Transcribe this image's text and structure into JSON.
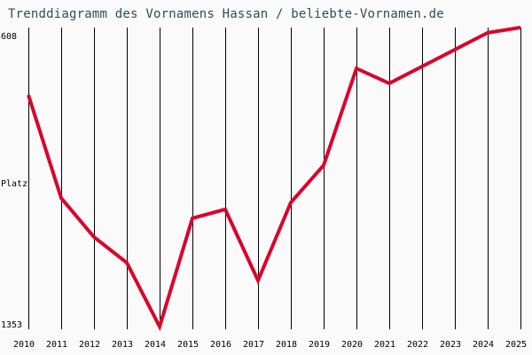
{
  "title": "Trenddiagramm des Vornamens Hassan / beliebte-Vornamen.de",
  "y_axis": {
    "top_label": "608",
    "mid_label": "Platz",
    "bottom_label": "1353"
  },
  "colors": {
    "line": "#d9042b",
    "title": "#2f4f4f",
    "grid": "#000000",
    "background": "#fafafa"
  },
  "chart_data": {
    "type": "line",
    "title": "Trenddiagramm des Vornamens Hassan / beliebte-Vornamen.de",
    "xlabel": "",
    "ylabel": "Platz",
    "ylim": [
      1353,
      608
    ],
    "y_inverted": true,
    "grid": "vertical",
    "legend": "none",
    "categories": [
      "2010",
      "2011",
      "2012",
      "2013",
      "2014",
      "2015",
      "2016",
      "2017",
      "2018",
      "2019",
      "2020",
      "2021",
      "2022",
      "2023",
      "2024",
      "2025"
    ],
    "series": [
      {
        "name": "Hassan",
        "values": [
          776,
          1033,
          1130,
          1194,
          1353,
          1083,
          1061,
          1238,
          1044,
          951,
          710,
          747,
          705,
          663,
          621,
          608
        ]
      }
    ]
  }
}
